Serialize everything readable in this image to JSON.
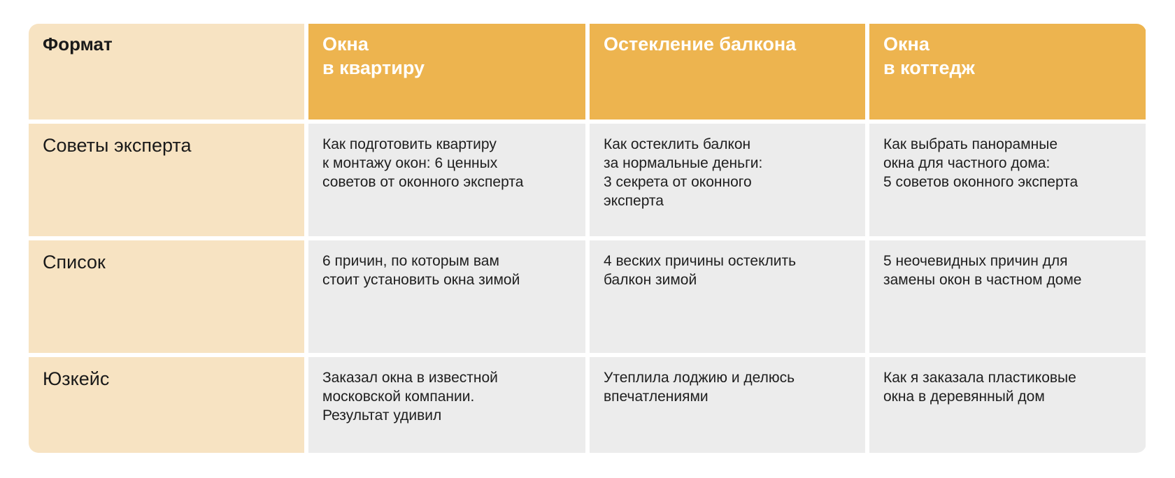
{
  "header": {
    "format_label": "Формат",
    "columns": [
      "Окна\nв квартиру",
      "Остекление балкона",
      "Окна\nв коттедж"
    ]
  },
  "rows": [
    {
      "label": "Советы эксперта",
      "cells": [
        "Как подготовить квартиру\nк монтажу окон: 6 ценных\nсоветов от оконного эксперта",
        "Как остеклить балкон\nза нормальные деньги:\n3 секрета от оконного\nэксперта",
        "Как выбрать панорамные\nокна для частного дома:\n5 советов оконного эксперта"
      ]
    },
    {
      "label": "Список",
      "cells": [
        "6 причин, по которым вам\nстоит установить окна зимой",
        "4 веских причины остеклить\nбалкон зимой",
        "5 неочевидных причин для\nзамены окон в частном доме"
      ]
    },
    {
      "label": "Юзкейс",
      "cells": [
        "Заказал окна в известной\nмосковской компании.\nРезультат удивил",
        "Утеплила лоджию и делюсь\nвпечатлениями",
        "Как я заказала пластиковые\nокна в деревянный дом"
      ]
    }
  ],
  "colors": {
    "header": "#EDB44F",
    "format_column": "#F7E3C2",
    "cell": "#ECECEC"
  }
}
